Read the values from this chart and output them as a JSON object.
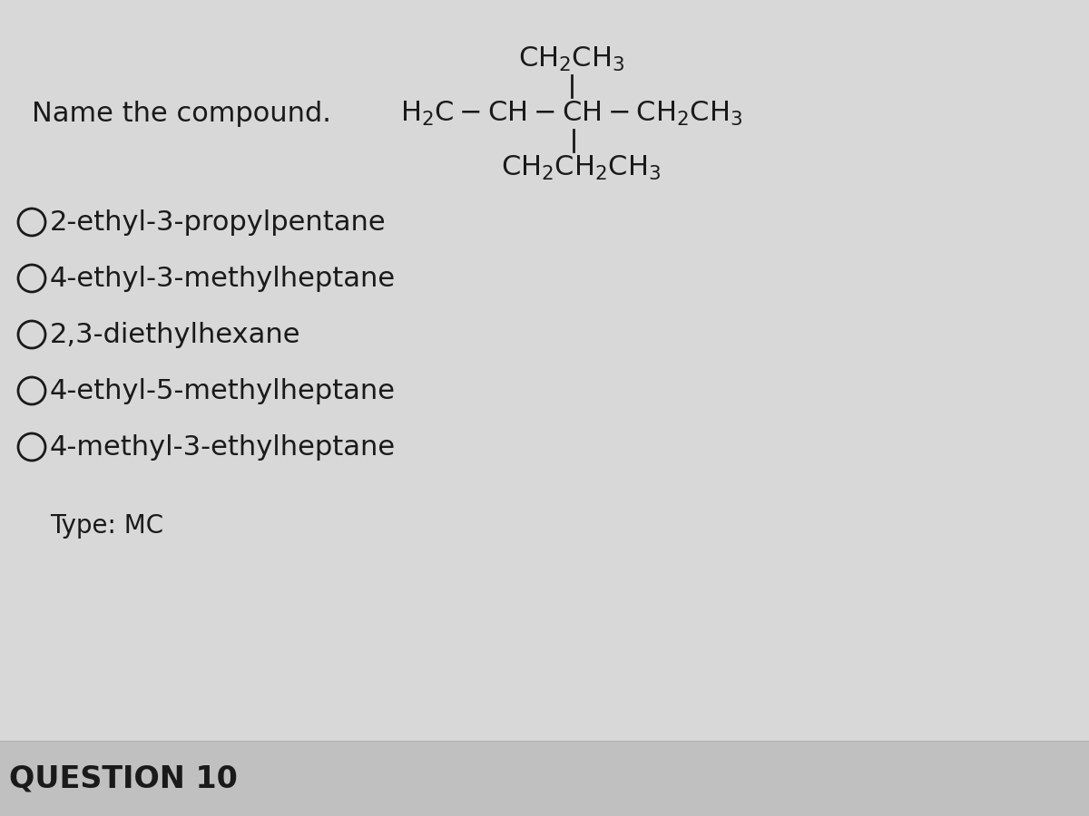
{
  "bg_color": "#d8d8d8",
  "bottom_bar_color": "#c8c8c8",
  "text_color": "#1a1a1a",
  "question_label": "Name the compound.",
  "structure_line1": "CH₂CH₃",
  "structure_main": "H₂C–CH–CH–CH₂CH₃",
  "structure_line3": "CH₂CH₂CH₃",
  "choices": [
    "2-ethyl-3-propylpentane",
    "4-ethyl-3-methylheptane",
    "2,3-diethylhexane",
    "4-ethyl-5-methylheptane",
    "4-methyl-3-ethylheptane"
  ],
  "type_label": "Type: MC",
  "question_number": "QUESTION 10",
  "font_size_main": 22,
  "font_size_choices": 22,
  "font_size_structure": 22,
  "font_size_question_num": 24,
  "font_size_type": 20
}
